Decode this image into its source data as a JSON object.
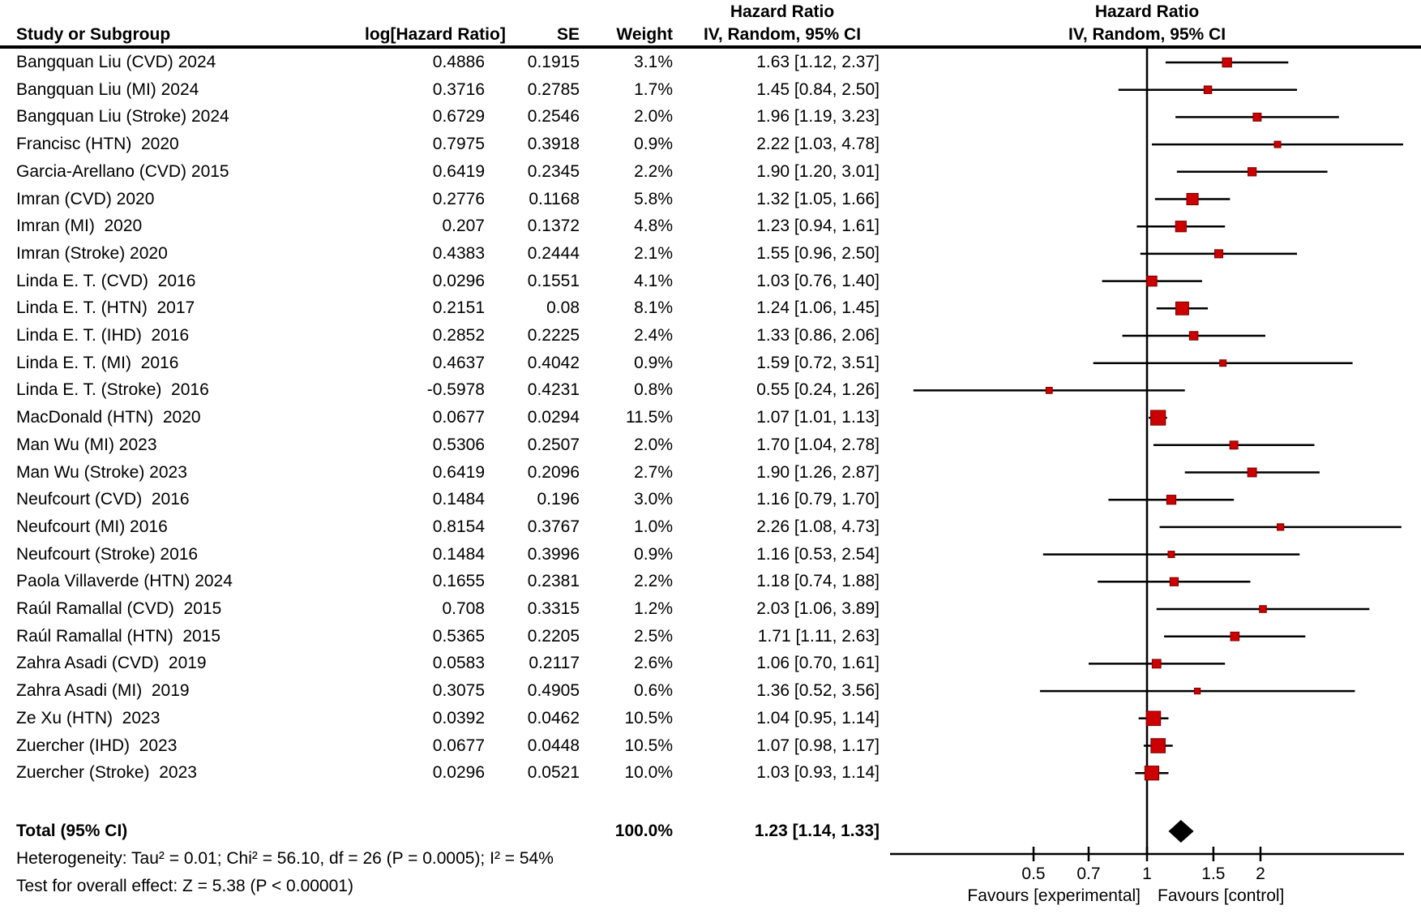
{
  "table": {
    "headers": {
      "effect_title": "Hazard Ratio",
      "study": "Study or Subgroup",
      "log_hr": "log[Hazard Ratio]",
      "se": "SE",
      "weight": "Weight",
      "ci": "IV, Random, 95% CI"
    },
    "plot_headers": {
      "effect_title": "Hazard Ratio",
      "ci": "IV, Random, 95% CI"
    }
  },
  "chart_data": {
    "type": "forest",
    "effect_measure": "Hazard Ratio",
    "model": "IV, Random, 95% CI",
    "x_scale": "log",
    "x_ticks": [
      "0.5",
      "0.7",
      "1",
      "1.5",
      "2"
    ],
    "x_tick_values": [
      0.5,
      0.7,
      1,
      1.5,
      2
    ],
    "x_range": [
      0.2,
      5
    ],
    "favours_left": "Favours [experimental]",
    "favours_right": "Favours [control]",
    "marker_color": "#cc0000",
    "marker_edge_color": "#7a0000",
    "line_color": "#000000",
    "studies": [
      {
        "name": "Bangquan Liu (CVD) 2024",
        "log_hr": "0.4886",
        "se": "0.1915",
        "weight": "3.1%",
        "hr": 1.63,
        "lo": 1.12,
        "hi": 2.37,
        "ci_text": "1.63 [1.12, 2.37]"
      },
      {
        "name": "Bangquan Liu (MI) 2024",
        "log_hr": "0.3716",
        "se": "0.2785",
        "weight": "1.7%",
        "hr": 1.45,
        "lo": 0.84,
        "hi": 2.5,
        "ci_text": "1.45 [0.84, 2.50]"
      },
      {
        "name": "Bangquan Liu (Stroke) 2024",
        "log_hr": "0.6729",
        "se": "0.2546",
        "weight": "2.0%",
        "hr": 1.96,
        "lo": 1.19,
        "hi": 3.23,
        "ci_text": "1.96 [1.19, 3.23]"
      },
      {
        "name": "Francisc (HTN)  2020",
        "log_hr": "0.7975",
        "se": "0.3918",
        "weight": "0.9%",
        "hr": 2.22,
        "lo": 1.03,
        "hi": 4.78,
        "ci_text": "2.22 [1.03, 4.78]"
      },
      {
        "name": "Garcia-Arellano (CVD) 2015",
        "log_hr": "0.6419",
        "se": "0.2345",
        "weight": "2.2%",
        "hr": 1.9,
        "lo": 1.2,
        "hi": 3.01,
        "ci_text": "1.90 [1.20, 3.01]"
      },
      {
        "name": "Imran (CVD) 2020",
        "log_hr": "0.2776",
        "se": "0.1168",
        "weight": "5.8%",
        "hr": 1.32,
        "lo": 1.05,
        "hi": 1.66,
        "ci_text": "1.32 [1.05, 1.66]"
      },
      {
        "name": "Imran (MI)  2020",
        "log_hr": "0.207",
        "se": "0.1372",
        "weight": "4.8%",
        "hr": 1.23,
        "lo": 0.94,
        "hi": 1.61,
        "ci_text": "1.23 [0.94, 1.61]"
      },
      {
        "name": "Imran (Stroke) 2020",
        "log_hr": "0.4383",
        "se": "0.2444",
        "weight": "2.1%",
        "hr": 1.55,
        "lo": 0.96,
        "hi": 2.5,
        "ci_text": "1.55 [0.96, 2.50]"
      },
      {
        "name": "Linda E. T. (CVD)  2016",
        "log_hr": "0.0296",
        "se": "0.1551",
        "weight": "4.1%",
        "hr": 1.03,
        "lo": 0.76,
        "hi": 1.4,
        "ci_text": "1.03 [0.76, 1.40]"
      },
      {
        "name": "Linda E. T. (HTN)  2017",
        "log_hr": "0.2151",
        "se": "0.08",
        "weight": "8.1%",
        "hr": 1.24,
        "lo": 1.06,
        "hi": 1.45,
        "ci_text": "1.24 [1.06, 1.45]"
      },
      {
        "name": "Linda E. T. (IHD)  2016",
        "log_hr": "0.2852",
        "se": "0.2225",
        "weight": "2.4%",
        "hr": 1.33,
        "lo": 0.86,
        "hi": 2.06,
        "ci_text": "1.33 [0.86, 2.06]"
      },
      {
        "name": "Linda E. T. (MI)  2016",
        "log_hr": "0.4637",
        "se": "0.4042",
        "weight": "0.9%",
        "hr": 1.59,
        "lo": 0.72,
        "hi": 3.51,
        "ci_text": "1.59 [0.72, 3.51]"
      },
      {
        "name": "Linda E. T. (Stroke)  2016",
        "log_hr": "-0.5978",
        "se": "0.4231",
        "weight": "0.8%",
        "hr": 0.55,
        "lo": 0.24,
        "hi": 1.26,
        "ci_text": "0.55 [0.24, 1.26]"
      },
      {
        "name": "MacDonald (HTN)  2020",
        "log_hr": "0.0677",
        "se": "0.0294",
        "weight": "11.5%",
        "hr": 1.07,
        "lo": 1.01,
        "hi": 1.13,
        "ci_text": "1.07 [1.01, 1.13]"
      },
      {
        "name": "Man Wu (MI) 2023",
        "log_hr": "0.5306",
        "se": "0.2507",
        "weight": "2.0%",
        "hr": 1.7,
        "lo": 1.04,
        "hi": 2.78,
        "ci_text": "1.70 [1.04, 2.78]"
      },
      {
        "name": "Man Wu (Stroke) 2023",
        "log_hr": "0.6419",
        "se": "0.2096",
        "weight": "2.7%",
        "hr": 1.9,
        "lo": 1.26,
        "hi": 2.87,
        "ci_text": "1.90 [1.26, 2.87]"
      },
      {
        "name": "Neufcourt (CVD)  2016",
        "log_hr": "0.1484",
        "se": "0.196",
        "weight": "3.0%",
        "hr": 1.16,
        "lo": 0.79,
        "hi": 1.7,
        "ci_text": "1.16 [0.79, 1.70]"
      },
      {
        "name": "Neufcourt (MI) 2016",
        "log_hr": "0.8154",
        "se": "0.3767",
        "weight": "1.0%",
        "hr": 2.26,
        "lo": 1.08,
        "hi": 4.73,
        "ci_text": "2.26 [1.08, 4.73]"
      },
      {
        "name": "Neufcourt (Stroke) 2016",
        "log_hr": "0.1484",
        "se": "0.3996",
        "weight": "0.9%",
        "hr": 1.16,
        "lo": 0.53,
        "hi": 2.54,
        "ci_text": "1.16 [0.53, 2.54]"
      },
      {
        "name": "Paola Villaverde (HTN) 2024",
        "log_hr": "0.1655",
        "se": "0.2381",
        "weight": "2.2%",
        "hr": 1.18,
        "lo": 0.74,
        "hi": 1.88,
        "ci_text": "1.18 [0.74, 1.88]"
      },
      {
        "name": "Raúl Ramallal (CVD)  2015",
        "log_hr": "0.708",
        "se": "0.3315",
        "weight": "1.2%",
        "hr": 2.03,
        "lo": 1.06,
        "hi": 3.89,
        "ci_text": "2.03 [1.06, 3.89]"
      },
      {
        "name": "Raúl Ramallal (HTN)  2015",
        "log_hr": "0.5365",
        "se": "0.2205",
        "weight": "2.5%",
        "hr": 1.71,
        "lo": 1.11,
        "hi": 2.63,
        "ci_text": "1.71 [1.11, 2.63]"
      },
      {
        "name": "Zahra Asadi (CVD)  2019",
        "log_hr": "0.0583",
        "se": "0.2117",
        "weight": "2.6%",
        "hr": 1.06,
        "lo": 0.7,
        "hi": 1.61,
        "ci_text": "1.06 [0.70, 1.61]"
      },
      {
        "name": "Zahra Asadi (MI)  2019",
        "log_hr": "0.3075",
        "se": "0.4905",
        "weight": "0.6%",
        "hr": 1.36,
        "lo": 0.52,
        "hi": 3.56,
        "ci_text": "1.36 [0.52, 3.56]"
      },
      {
        "name": "Ze Xu (HTN)  2023",
        "log_hr": "0.0392",
        "se": "0.0462",
        "weight": "10.5%",
        "hr": 1.04,
        "lo": 0.95,
        "hi": 1.14,
        "ci_text": "1.04 [0.95, 1.14]"
      },
      {
        "name": "Zuercher (IHD)  2023",
        "log_hr": "0.0677",
        "se": "0.0448",
        "weight": "10.5%",
        "hr": 1.07,
        "lo": 0.98,
        "hi": 1.17,
        "ci_text": "1.07 [0.98, 1.17]"
      },
      {
        "name": "Zuercher (Stroke)  2023",
        "log_hr": "0.0296",
        "se": "0.0521",
        "weight": "10.0%",
        "hr": 1.03,
        "lo": 0.93,
        "hi": 1.14,
        "ci_text": "1.03 [0.93, 1.14]"
      }
    ],
    "total": {
      "label": "Total (95% CI)",
      "weight": "100.0%",
      "hr": 1.23,
      "lo": 1.14,
      "hi": 1.33,
      "ci_text": "1.23 [1.14, 1.33]"
    },
    "heterogeneity": "Heterogeneity: Tau² = 0.01; Chi² = 56.10, df = 26 (P = 0.0005); I² = 54%",
    "overall_effect": "Test for overall effect: Z = 5.38 (P < 0.00001)"
  }
}
